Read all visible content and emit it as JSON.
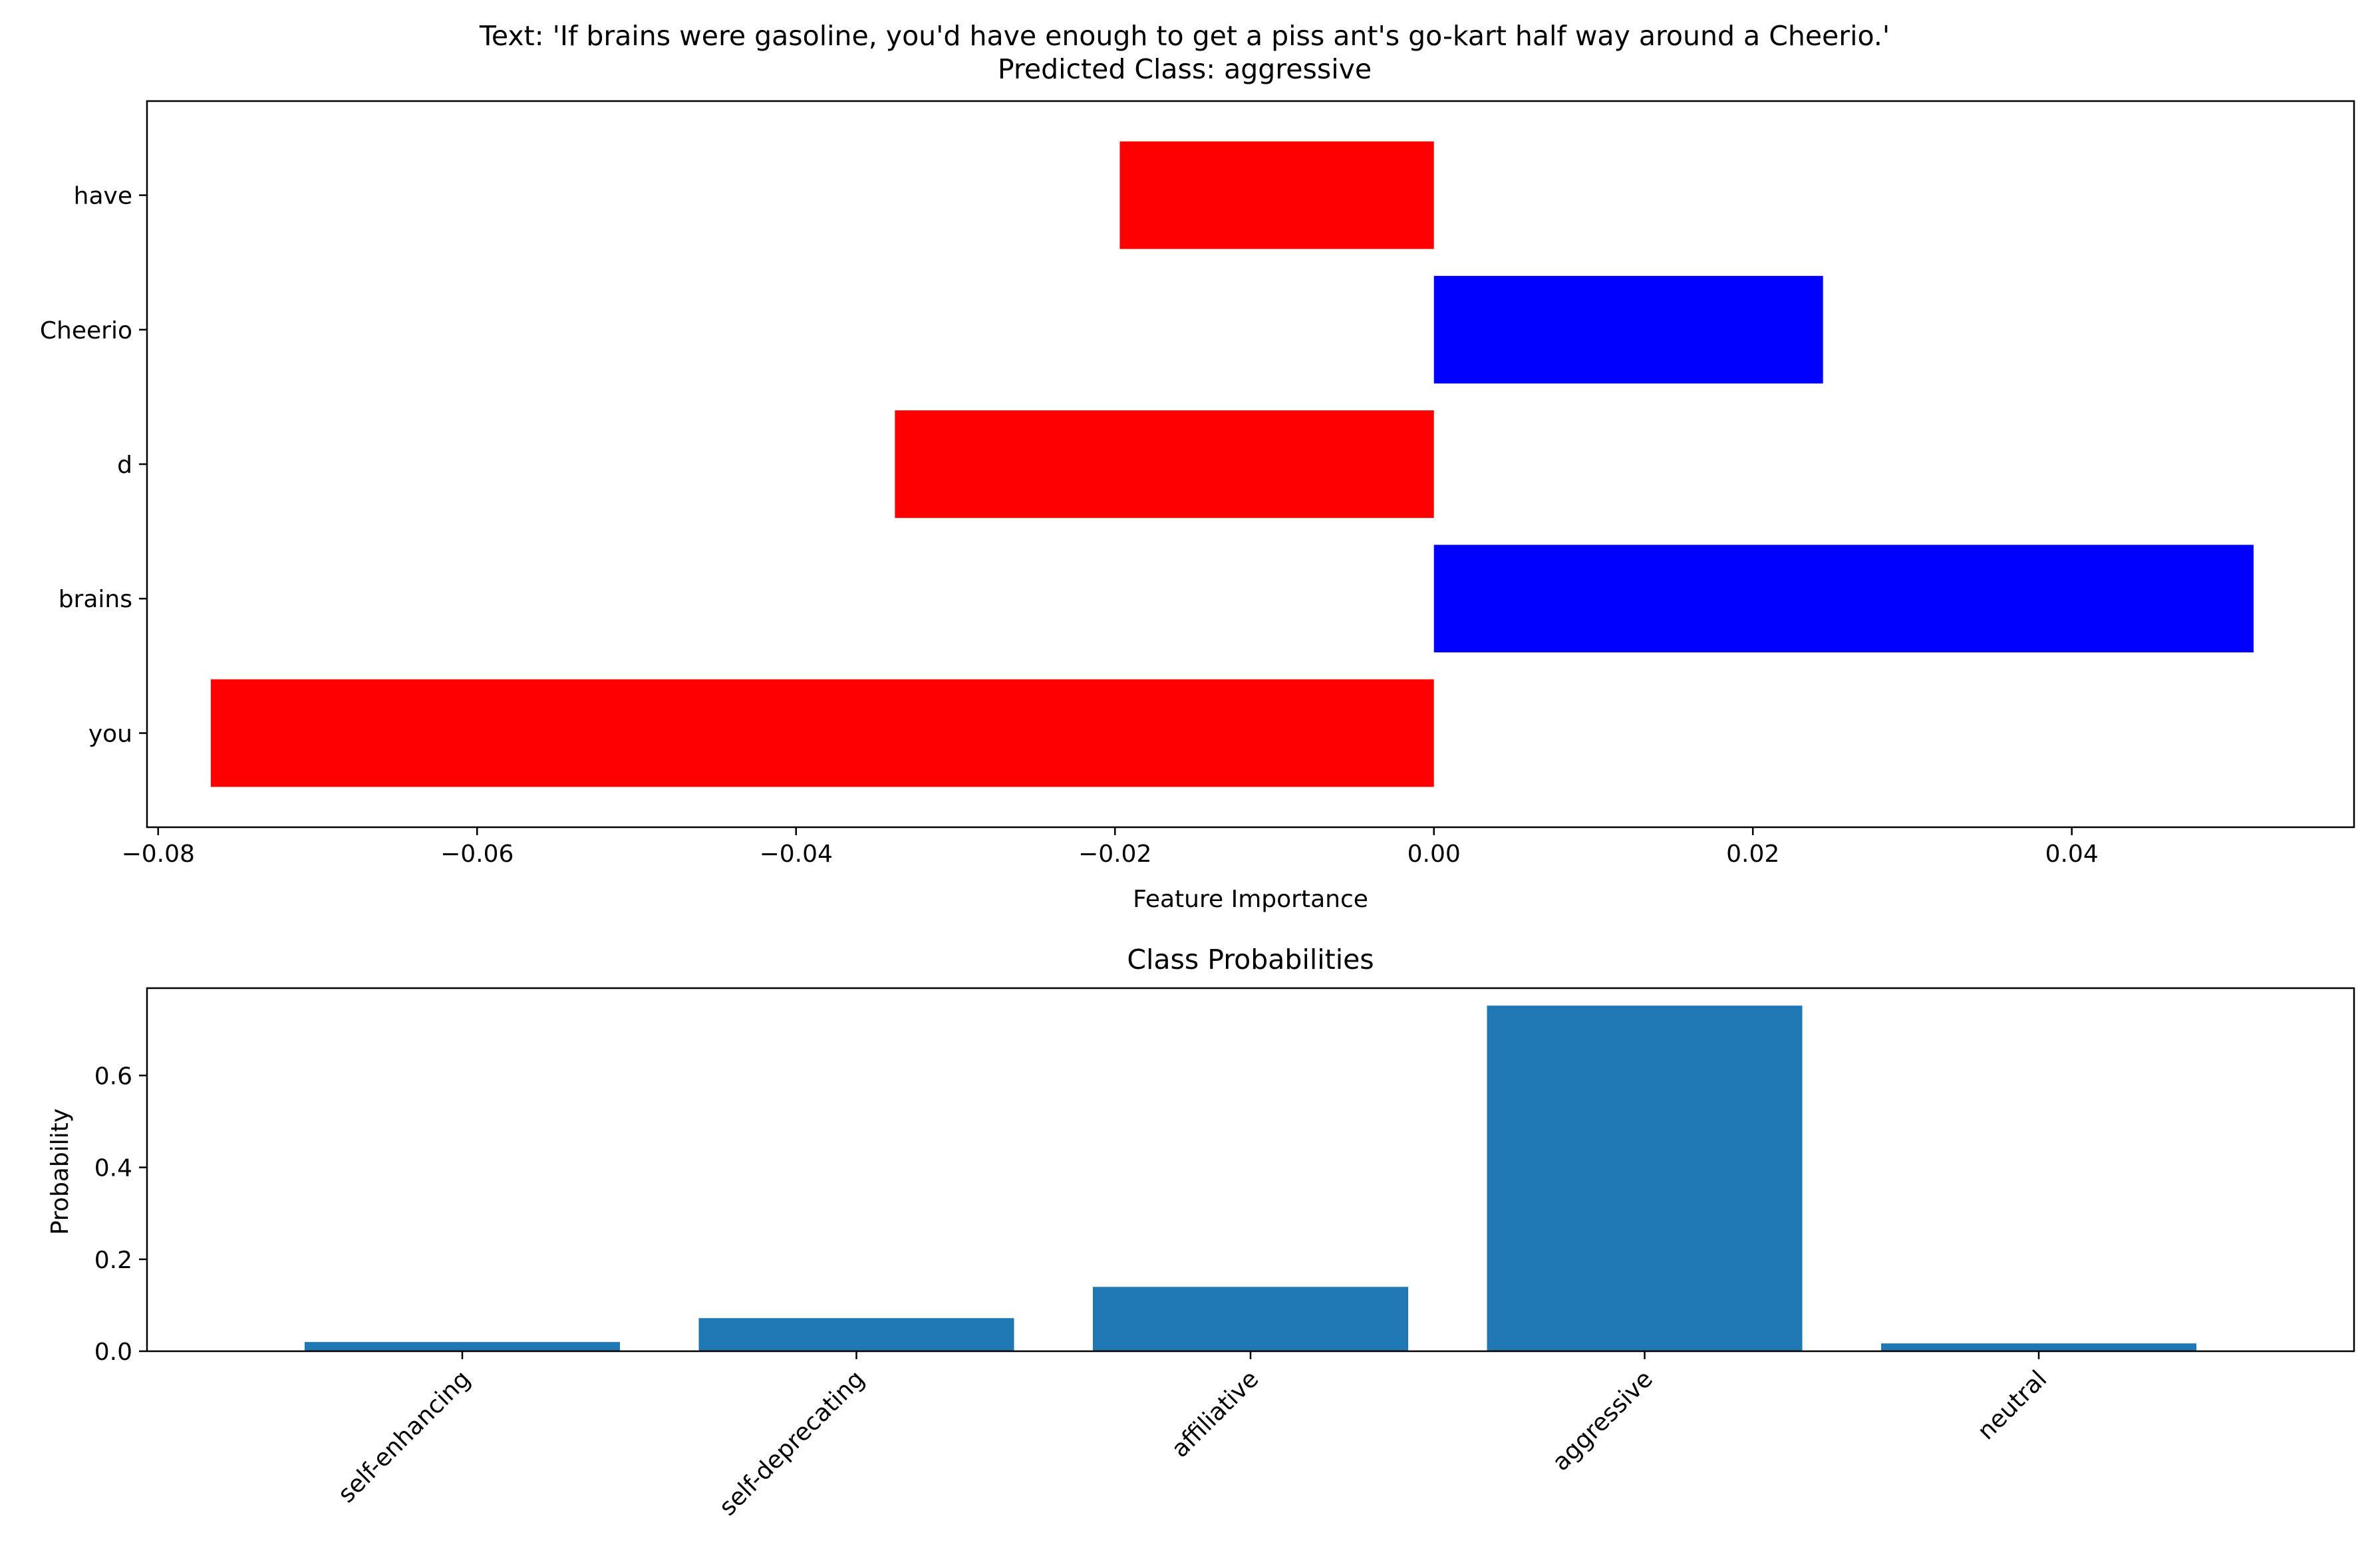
{
  "chart_data": [
    {
      "type": "bar",
      "orientation": "horizontal",
      "title_line1": "Text: 'If brains were gasoline, you'd have enough to get a piss ant's go-kart half way around a Cheerio.'",
      "title_line2": "Predicted Class: aggressive",
      "xlabel": "Feature Importance",
      "ylabel": "",
      "categories": [
        "you",
        "brains",
        "d",
        "Cheerio",
        "have"
      ],
      "values": [
        -0.0767,
        0.0514,
        -0.0338,
        0.0244,
        -0.0197
      ],
      "xlim": [
        -0.0807,
        0.0577
      ],
      "xticks": [
        -0.08,
        -0.06,
        -0.04,
        -0.02,
        0.0,
        0.02,
        0.04
      ],
      "xtick_labels": [
        "−0.08",
        "−0.06",
        "−0.04",
        "−0.02",
        "0.00",
        "0.02",
        "0.04"
      ],
      "colors": {
        "positive": "#0000ff",
        "negative": "#ff0000"
      },
      "grid": false,
      "legend": "none"
    },
    {
      "type": "bar",
      "title": "Class Probabilities",
      "xlabel": "",
      "ylabel": "Probability",
      "categories": [
        "self-enhancing",
        "self-deprecating",
        "affiliative",
        "aggressive",
        "neutral"
      ],
      "values": [
        0.02,
        0.072,
        0.14,
        0.752,
        0.017
      ],
      "ylim": [
        0,
        0.79
      ],
      "yticks": [
        0.0,
        0.2,
        0.4,
        0.6
      ],
      "ytick_labels": [
        "0.0",
        "0.2",
        "0.4",
        "0.6"
      ],
      "color": "#1f77b4",
      "grid": false,
      "legend": "none"
    }
  ]
}
